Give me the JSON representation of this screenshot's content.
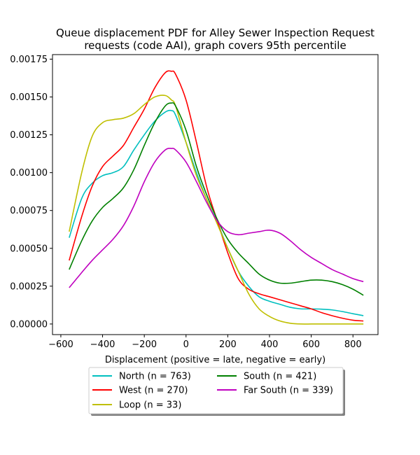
{
  "chart_data": {
    "type": "line",
    "title_lines": [
      "Queue displacement PDF for Alley Sewer Inspection Request",
      "requests (code AAI), graph covers 95th percentile"
    ],
    "xlabel": "Displacement (positive = late, negative = early)",
    "ylabel": "",
    "xlim": [
      -640,
      920
    ],
    "ylim": [
      -7e-05,
      0.00178
    ],
    "xticks": [
      -600,
      -400,
      -200,
      0,
      200,
      400,
      600,
      800
    ],
    "xtick_labels": [
      "−600",
      "−400",
      "−200",
      "0",
      "200",
      "400",
      "600",
      "800"
    ],
    "yticks": [
      0,
      0.00025,
      0.0005,
      0.00075,
      0.001,
      0.00125,
      0.0015,
      0.00175
    ],
    "ytick_labels": [
      "0.00000",
      "0.00025",
      "0.00050",
      "0.00075",
      "0.00100",
      "0.00125",
      "0.00150",
      "0.00175"
    ],
    "grid": false,
    "legend_position": "below-center",
    "x": [
      -560,
      -500,
      -450,
      -400,
      -350,
      -300,
      -250,
      -200,
      -150,
      -100,
      -70,
      -50,
      0,
      50,
      100,
      150,
      200,
      250,
      300,
      350,
      400,
      450,
      500,
      550,
      600,
      650,
      700,
      750,
      800,
      850
    ],
    "series": [
      {
        "name": "North (n = 763)",
        "color": "#00bfbf",
        "values": [
          0.00057,
          0.00083,
          0.00093,
          0.00098,
          0.001,
          0.00104,
          0.00115,
          0.00125,
          0.00134,
          0.0014,
          0.00141,
          0.00138,
          0.0012,
          0.001,
          0.00082,
          0.00067,
          0.0005,
          0.00035,
          0.00025,
          0.00018,
          0.00015,
          0.00013,
          0.00011,
          0.0001,
          0.0001,
          9.8e-05,
          9.3e-05,
          8.2e-05,
          6.8e-05,
          5.5e-05
        ]
      },
      {
        "name": "West (n = 270)",
        "color": "#ff0000",
        "values": [
          0.00042,
          0.00071,
          0.00091,
          0.00104,
          0.00111,
          0.00118,
          0.0013,
          0.00142,
          0.00156,
          0.00166,
          0.00167,
          0.00165,
          0.00148,
          0.0012,
          0.0009,
          0.00068,
          0.00047,
          0.0003,
          0.00023,
          0.0002,
          0.00018,
          0.00016,
          0.00014,
          0.00012,
          0.0001,
          7.5e-05,
          5.5e-05,
          3.8e-05,
          2.5e-05,
          2e-05
        ]
      },
      {
        "name": "Loop (n = 33)",
        "color": "#bfbf00",
        "values": [
          0.00061,
          0.001,
          0.00124,
          0.00133,
          0.00135,
          0.00136,
          0.00139,
          0.00145,
          0.0015,
          0.00151,
          0.00148,
          0.00144,
          0.0012,
          0.00098,
          0.00082,
          0.00066,
          0.0005,
          0.00035,
          0.0002,
          0.0001,
          5e-05,
          2e-05,
          5e-06,
          0,
          0,
          0,
          0,
          0,
          0,
          0
        ]
      },
      {
        "name": "South (n = 421)",
        "color": "#008000",
        "values": [
          0.00036,
          0.00055,
          0.00068,
          0.00077,
          0.00083,
          0.0009,
          0.00102,
          0.00118,
          0.00133,
          0.00144,
          0.00146,
          0.00144,
          0.00128,
          0.00104,
          0.00085,
          0.00069,
          0.00056,
          0.00047,
          0.0004,
          0.00033,
          0.00029,
          0.00027,
          0.00027,
          0.00028,
          0.00029,
          0.00029,
          0.00028,
          0.00026,
          0.00023,
          0.00019
        ]
      },
      {
        "name": "Far South (n = 339)",
        "color": "#bf00bf",
        "values": [
          0.00024,
          0.00034,
          0.00042,
          0.00049,
          0.00056,
          0.00065,
          0.00078,
          0.00094,
          0.00107,
          0.00115,
          0.00116,
          0.00115,
          0.00107,
          0.00094,
          0.0008,
          0.00068,
          0.00061,
          0.00059,
          0.0006,
          0.00061,
          0.00062,
          0.0006,
          0.00055,
          0.00049,
          0.00044,
          0.0004,
          0.00036,
          0.00033,
          0.0003,
          0.00028
        ]
      }
    ]
  }
}
